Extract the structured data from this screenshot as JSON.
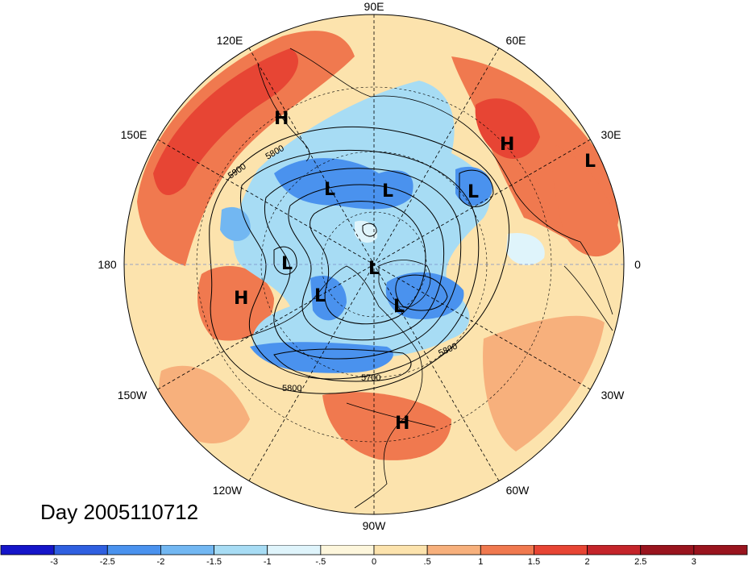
{
  "title": "Day 2005110712",
  "longitude_labels": [
    "90E",
    "60E",
    "30E",
    "0",
    "30W",
    "60W",
    "90W",
    "120W",
    "150W",
    "180",
    "150E",
    "120E"
  ],
  "contour_labels": [
    "5800",
    "5900",
    "5800",
    "5800",
    "5700"
  ],
  "pressure_centers": [
    {
      "type": "H",
      "region": "east-asia"
    },
    {
      "type": "H",
      "region": "ural"
    },
    {
      "type": "L",
      "region": "europe"
    },
    {
      "type": "L",
      "region": "siberia-west"
    },
    {
      "type": "L",
      "region": "siberia-east"
    },
    {
      "type": "L",
      "region": "scandinavia"
    },
    {
      "type": "L",
      "region": "bering"
    },
    {
      "type": "L",
      "region": "pole"
    },
    {
      "type": "L",
      "region": "alaska"
    },
    {
      "type": "L",
      "region": "greenland"
    },
    {
      "type": "H",
      "region": "north-pacific"
    },
    {
      "type": "H",
      "region": "caribbean"
    }
  ],
  "colorbar": {
    "tick_labels": [
      "-3",
      "-2.5",
      "-2",
      "-1.5",
      "-1",
      "-.5",
      "0",
      ".5",
      "1",
      "1.5",
      "2",
      "2.5",
      "3"
    ],
    "colors": [
      "#1515c9",
      "#2f5fe0",
      "#4a92ee",
      "#72b7f2",
      "#a7dcf4",
      "#dff4fb",
      "#fdf6dc",
      "#fce3ad",
      "#f7b07c",
      "#f0794f",
      "#e74534",
      "#c4242a",
      "#99141e"
    ]
  },
  "colors": {
    "warm_strong": "#e74534",
    "warm_mid": "#f0794f",
    "warm_light": "#fce3ad",
    "cool_mid": "#4a92ee",
    "cool_light": "#a7dcf4"
  }
}
